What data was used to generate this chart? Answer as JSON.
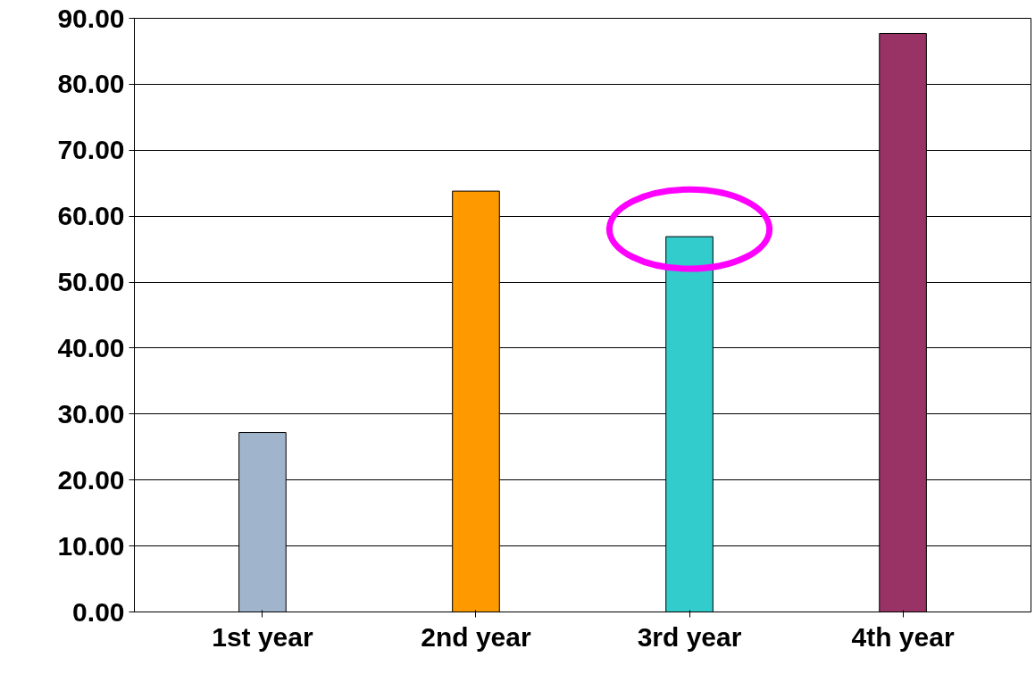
{
  "chart_data": {
    "type": "bar",
    "categories": [
      "1st year",
      "2nd year",
      "3rd year",
      "4th year"
    ],
    "values": [
      27.2,
      63.8,
      56.9,
      87.7
    ],
    "colors": [
      "#a0b4cc",
      "#ff9900",
      "#33cccc",
      "#993366"
    ],
    "ylim": [
      0,
      90
    ],
    "yticks": [
      {
        "value": 0,
        "label": "0.00"
      },
      {
        "value": 10,
        "label": "10.00"
      },
      {
        "value": 20,
        "label": "20.00"
      },
      {
        "value": 30,
        "label": "30.00"
      },
      {
        "value": 40,
        "label": "40.00"
      },
      {
        "value": 50,
        "label": "50.00"
      },
      {
        "value": 60,
        "label": "60.00"
      },
      {
        "value": 70,
        "label": "70.00"
      },
      {
        "value": 80,
        "label": "80.00"
      },
      {
        "value": 90,
        "label": "90.00"
      }
    ],
    "grid": "y"
  }
}
